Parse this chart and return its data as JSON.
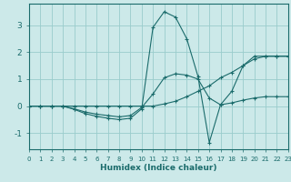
{
  "xlabel": "Humidex (Indice chaleur)",
  "bg_color": "#cce9e9",
  "grid_color": "#99cccc",
  "line_color": "#1a6b6b",
  "xlim": [
    0,
    23
  ],
  "ylim": [
    -1.6,
    3.8
  ],
  "xticks": [
    0,
    1,
    2,
    3,
    4,
    5,
    6,
    7,
    8,
    9,
    10,
    11,
    12,
    13,
    14,
    15,
    16,
    17,
    18,
    19,
    20,
    21,
    22,
    23
  ],
  "yticks": [
    -1,
    0,
    1,
    2,
    3
  ],
  "x_values": [
    0,
    1,
    2,
    3,
    4,
    5,
    6,
    7,
    8,
    9,
    10,
    11,
    12,
    13,
    14,
    15,
    16,
    17,
    18,
    19,
    20,
    21,
    22,
    23
  ],
  "series1": [
    0.0,
    0.0,
    0.0,
    0.0,
    -0.12,
    -0.28,
    -0.38,
    -0.45,
    -0.5,
    -0.45,
    -0.1,
    2.92,
    3.5,
    3.3,
    2.5,
    1.1,
    -1.35,
    0.05,
    0.55,
    1.5,
    1.85,
    1.85,
    1.85,
    1.85
  ],
  "series2": [
    0.0,
    0.0,
    0.0,
    0.0,
    -0.1,
    -0.22,
    -0.3,
    -0.35,
    -0.4,
    -0.35,
    -0.05,
    0.45,
    1.05,
    1.2,
    1.15,
    1.0,
    0.3,
    0.05,
    0.12,
    0.22,
    0.3,
    0.35,
    0.35,
    0.35
  ],
  "series3": [
    0.0,
    0.0,
    0.0,
    0.0,
    0.0,
    0.0,
    0.0,
    0.0,
    0.0,
    0.0,
    0.0,
    0.0,
    0.08,
    0.18,
    0.35,
    0.55,
    0.75,
    1.05,
    1.25,
    1.5,
    1.75,
    1.85,
    1.85,
    1.85
  ]
}
